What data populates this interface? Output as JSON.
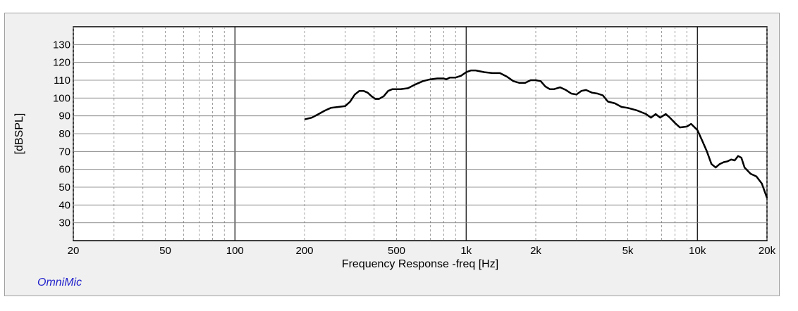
{
  "app": {
    "brand": "OmniMic"
  },
  "chart_data": {
    "type": "line",
    "xscale": "log",
    "xlim": [
      20,
      20000
    ],
    "ylim": [
      20,
      140
    ],
    "grid": true,
    "xlabel": "Frequency Response -freq [Hz]",
    "ylabel": "[dBSPL]",
    "x_ticks": [
      {
        "value": 20,
        "label": "20"
      },
      {
        "value": 50,
        "label": "50"
      },
      {
        "value": 100,
        "label": "100"
      },
      {
        "value": 200,
        "label": "200"
      },
      {
        "value": 500,
        "label": "500"
      },
      {
        "value": 1000,
        "label": "1k"
      },
      {
        "value": 2000,
        "label": "2k"
      },
      {
        "value": 5000,
        "label": "5k"
      },
      {
        "value": 10000,
        "label": "10k"
      },
      {
        "value": 20000,
        "label": "20k"
      }
    ],
    "y_ticks": [
      {
        "value": 30,
        "label": "30"
      },
      {
        "value": 40,
        "label": "40"
      },
      {
        "value": 50,
        "label": "50"
      },
      {
        "value": 60,
        "label": "60"
      },
      {
        "value": 70,
        "label": "70"
      },
      {
        "value": 80,
        "label": "80"
      },
      {
        "value": 90,
        "label": "90"
      },
      {
        "value": 100,
        "label": "100"
      },
      {
        "value": 110,
        "label": "110"
      },
      {
        "value": 120,
        "label": "120"
      },
      {
        "value": 130,
        "label": "130"
      }
    ],
    "series": [
      {
        "color": "#000000",
        "points": [
          [
            200,
            88
          ],
          [
            215,
            89
          ],
          [
            230,
            91
          ],
          [
            245,
            93
          ],
          [
            260,
            94.5
          ],
          [
            280,
            95
          ],
          [
            300,
            95.5
          ],
          [
            315,
            98
          ],
          [
            330,
            102
          ],
          [
            345,
            104
          ],
          [
            360,
            104
          ],
          [
            375,
            103
          ],
          [
            390,
            101
          ],
          [
            405,
            99.5
          ],
          [
            420,
            99.5
          ],
          [
            440,
            101
          ],
          [
            460,
            104
          ],
          [
            480,
            105
          ],
          [
            520,
            105
          ],
          [
            560,
            105.5
          ],
          [
            600,
            107.5
          ],
          [
            650,
            109.5
          ],
          [
            700,
            110.5
          ],
          [
            750,
            111
          ],
          [
            800,
            111
          ],
          [
            820,
            110.5
          ],
          [
            850,
            111.5
          ],
          [
            900,
            111.5
          ],
          [
            950,
            112.5
          ],
          [
            1000,
            114.5
          ],
          [
            1050,
            115.5
          ],
          [
            1100,
            115.5
          ],
          [
            1200,
            114.5
          ],
          [
            1300,
            114
          ],
          [
            1400,
            114
          ],
          [
            1500,
            112
          ],
          [
            1600,
            109.5
          ],
          [
            1700,
            108.5
          ],
          [
            1800,
            108.5
          ],
          [
            1900,
            110
          ],
          [
            2000,
            110
          ],
          [
            2100,
            109.5
          ],
          [
            2200,
            106.5
          ],
          [
            2300,
            105
          ],
          [
            2400,
            105
          ],
          [
            2550,
            106
          ],
          [
            2700,
            104.5
          ],
          [
            2850,
            102.5
          ],
          [
            3000,
            102
          ],
          [
            3150,
            104
          ],
          [
            3300,
            104.5
          ],
          [
            3500,
            103
          ],
          [
            3700,
            102.5
          ],
          [
            3900,
            101.5
          ],
          [
            4100,
            98
          ],
          [
            4400,
            97
          ],
          [
            4700,
            95
          ],
          [
            5000,
            94.5
          ],
          [
            5500,
            93
          ],
          [
            6000,
            91
          ],
          [
            6300,
            89
          ],
          [
            6600,
            91
          ],
          [
            6900,
            89
          ],
          [
            7300,
            91
          ],
          [
            7600,
            89
          ],
          [
            8000,
            86
          ],
          [
            8400,
            83.5
          ],
          [
            9000,
            84
          ],
          [
            9400,
            85.5
          ],
          [
            10000,
            82
          ],
          [
            10500,
            76
          ],
          [
            11000,
            70
          ],
          [
            11500,
            63
          ],
          [
            12000,
            61
          ],
          [
            12500,
            63
          ],
          [
            13000,
            64
          ],
          [
            13500,
            64.5
          ],
          [
            14000,
            65.5
          ],
          [
            14500,
            65
          ],
          [
            15000,
            67.5
          ],
          [
            15500,
            66.5
          ],
          [
            16000,
            61
          ],
          [
            17000,
            57.5
          ],
          [
            18000,
            56
          ],
          [
            19000,
            52
          ],
          [
            20000,
            44
          ]
        ]
      }
    ]
  }
}
